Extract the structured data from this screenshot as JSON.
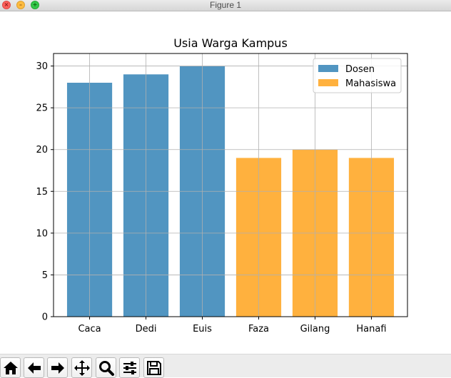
{
  "window": {
    "title": "Figure 1"
  },
  "toolbar": {
    "buttons": [
      {
        "name": "home-button",
        "icon": "home-icon"
      },
      {
        "name": "back-button",
        "icon": "arrow-left-icon"
      },
      {
        "name": "forward-button",
        "icon": "arrow-right-icon"
      },
      {
        "name": "pan-button",
        "icon": "move-icon"
      },
      {
        "name": "zoom-button",
        "icon": "magnifier-icon"
      },
      {
        "name": "configure-subplots-button",
        "icon": "sliders-icon"
      },
      {
        "name": "save-button",
        "icon": "floppy-disk-icon"
      }
    ]
  },
  "chart_data": {
    "type": "bar",
    "title": "Usia Warga Kampus",
    "xlabel": "",
    "ylabel": "",
    "categories": [
      "Caca",
      "Dedi",
      "Euis",
      "Faza",
      "Gilang",
      "Hanafi"
    ],
    "series": [
      {
        "name": "Dosen",
        "color": "#5195c1",
        "values": [
          28,
          29,
          30,
          null,
          null,
          null
        ]
      },
      {
        "name": "Mahasiswa",
        "color": "#ffb13e",
        "values": [
          null,
          null,
          null,
          19,
          20,
          19
        ]
      }
    ],
    "ylim": [
      0,
      31.5
    ],
    "yticks": [
      0,
      5,
      10,
      15,
      20,
      25,
      30
    ],
    "grid": true,
    "legend": "top-right"
  }
}
